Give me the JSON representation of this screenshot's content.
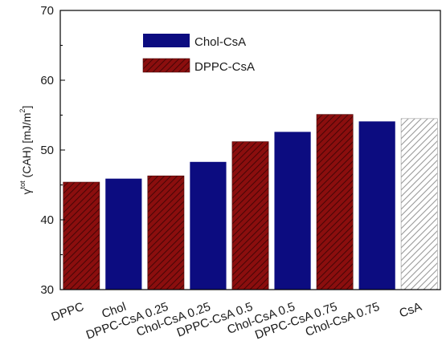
{
  "chart_data": {
    "type": "bar",
    "categories": [
      "DPPC",
      "Chol",
      "DPPC-CsA 0.25",
      "Chol-CsA 0.25",
      "DPPC-CsA 0.5",
      "Chol-CsA 0.5",
      "DPPC-CsA 0.75",
      "Chol-CsA 0.75",
      "CsA"
    ],
    "values": [
      45.4,
      45.9,
      46.3,
      48.3,
      51.2,
      52.6,
      55.1,
      54.1,
      54.5
    ],
    "series_index": [
      1,
      0,
      1,
      0,
      1,
      0,
      1,
      0,
      2
    ],
    "series": [
      {
        "name": "Chol-CsA",
        "color": "#0c0c80",
        "pattern": "solid"
      },
      {
        "name": "DPPC-CsA",
        "color": "#8b0e0e",
        "pattern": "hatch-dark"
      },
      {
        "name": "",
        "color": "#ffffff",
        "pattern": "hatch-light"
      }
    ],
    "title": "",
    "xlabel": "",
    "ylabel": {
      "prefix": "γ",
      "superscript": "tot",
      "suffix": " (CAH) [mJ/m",
      "suffix_sup": "2",
      "close": "]"
    },
    "ylim": [
      30,
      70
    ],
    "yticks": [
      30,
      40,
      50,
      60,
      70
    ],
    "grid": false,
    "legend": "top-left"
  }
}
